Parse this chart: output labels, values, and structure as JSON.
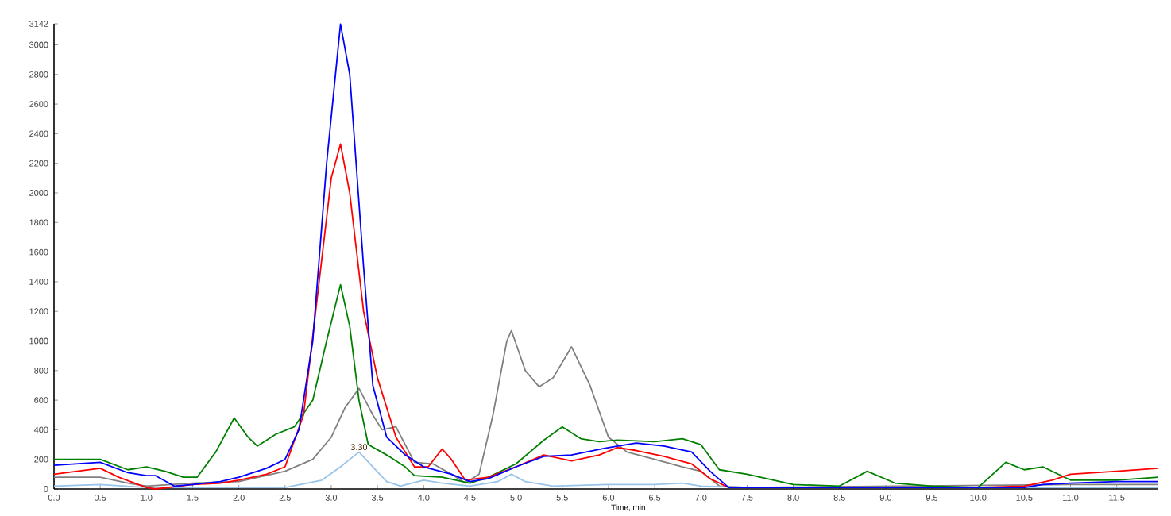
{
  "chart_data": {
    "type": "line",
    "xlabel": "Time, min",
    "xlim": [
      0,
      11.95
    ],
    "ylim": [
      0,
      3142
    ],
    "xticks": [
      {
        "value": 0,
        "label": "0.0"
      },
      0.5,
      {
        "value": 1,
        "label": "1.0"
      },
      1.5,
      {
        "value": 2,
        "label": "2.0"
      },
      2.5,
      {
        "value": 3,
        "label": "3.0"
      },
      3.5,
      {
        "value": 4,
        "label": "4.0"
      },
      4.5,
      {
        "value": 5,
        "label": "5.0"
      },
      5.5,
      {
        "value": 6,
        "label": "6.0"
      },
      6.5,
      {
        "value": 7,
        "label": "7.0"
      },
      7.5,
      {
        "value": 8,
        "label": "8.0"
      },
      8.5,
      {
        "value": 9,
        "label": "9.0"
      },
      9.5,
      {
        "value": 10,
        "label": "10.0"
      },
      10.5,
      {
        "value": 11,
        "label": "11.0"
      },
      11.5
    ],
    "yticks": [
      0,
      200,
      400,
      600,
      800,
      1000,
      1200,
      1400,
      1600,
      1800,
      2000,
      2200,
      2400,
      2600,
      2800,
      3000,
      3142
    ],
    "grid": false,
    "marker": "none",
    "line_style": "solid",
    "annotations": [
      {
        "text": "3.30",
        "x": 3.3,
        "y": 250
      }
    ],
    "series": [
      {
        "color": "#808080",
        "x": [
          0,
          0.5,
          0.8,
          1.0,
          1.5,
          2.0,
          2.5,
          2.8,
          3.0,
          3.15,
          3.3,
          3.45,
          3.55,
          3.7,
          3.8,
          3.9,
          4.1,
          4.3,
          4.45,
          4.6,
          4.75,
          4.9,
          4.95,
          5.1,
          5.25,
          5.4,
          5.6,
          5.8,
          6.0,
          6.2,
          6.5,
          6.8,
          7.0,
          7.2,
          7.5,
          11.0,
          11.95
        ],
        "values": [
          80,
          80,
          40,
          20,
          40,
          50,
          120,
          200,
          350,
          550,
          680,
          500,
          400,
          420,
          300,
          180,
          170,
          100,
          40,
          100,
          500,
          1000,
          1070,
          800,
          690,
          750,
          960,
          700,
          350,
          250,
          200,
          150,
          120,
          20,
          10,
          30,
          30
        ]
      },
      {
        "color": "#99c4e8",
        "x": [
          0,
          0.5,
          1.0,
          1.5,
          2.5,
          2.9,
          3.1,
          3.3,
          3.45,
          3.6,
          3.75,
          4.0,
          4.2,
          4.5,
          4.8,
          4.95,
          5.1,
          5.4,
          6.0,
          6.5,
          6.8,
          7.0,
          7.5,
          11.95
        ],
        "values": [
          20,
          30,
          10,
          10,
          10,
          60,
          150,
          250,
          150,
          50,
          20,
          60,
          40,
          20,
          50,
          100,
          50,
          20,
          30,
          30,
          40,
          20,
          10,
          10
        ]
      },
      {
        "color": "#008000",
        "x": [
          0,
          0.5,
          0.8,
          1.0,
          1.2,
          1.4,
          1.55,
          1.75,
          1.95,
          2.1,
          2.2,
          2.4,
          2.6,
          2.8,
          2.95,
          3.1,
          3.2,
          3.3,
          3.4,
          3.6,
          3.8,
          3.9,
          4.2,
          4.5,
          4.7,
          5.0,
          5.3,
          5.5,
          5.7,
          5.9,
          6.1,
          6.5,
          6.8,
          7.0,
          7.2,
          7.5,
          8.0,
          8.5,
          8.8,
          9.1,
          9.5,
          10.0,
          10.3,
          10.5,
          10.7,
          11.0,
          11.5,
          11.95
        ],
        "values": [
          200,
          200,
          130,
          150,
          120,
          80,
          80,
          250,
          480,
          350,
          290,
          370,
          420,
          600,
          1000,
          1380,
          1100,
          600,
          300,
          230,
          150,
          90,
          80,
          40,
          80,
          170,
          330,
          420,
          340,
          320,
          330,
          320,
          340,
          300,
          130,
          100,
          30,
          20,
          120,
          40,
          20,
          10,
          180,
          130,
          150,
          60,
          60,
          80
        ]
      },
      {
        "color": "#ff0000",
        "x": [
          0,
          0.5,
          0.7,
          1.0,
          1.1,
          1.5,
          1.8,
          2.0,
          2.3,
          2.5,
          2.7,
          2.85,
          3.0,
          3.1,
          3.2,
          3.35,
          3.5,
          3.7,
          3.9,
          4.05,
          4.2,
          4.3,
          4.45,
          4.7,
          5.0,
          5.3,
          5.6,
          5.9,
          6.1,
          6.3,
          6.6,
          6.9,
          7.1,
          7.3,
          9.5,
          10.0,
          10.5,
          10.8,
          11.0,
          11.5,
          11.95
        ],
        "values": [
          100,
          140,
          80,
          10,
          0,
          30,
          40,
          60,
          100,
          150,
          500,
          1300,
          2100,
          2330,
          2000,
          1200,
          750,
          350,
          150,
          150,
          270,
          200,
          60,
          80,
          150,
          230,
          190,
          230,
          280,
          260,
          220,
          170,
          70,
          10,
          10,
          10,
          20,
          60,
          100,
          120,
          140
        ]
      },
      {
        "color": "#0000ff",
        "x": [
          0,
          0.5,
          0.8,
          1.0,
          1.1,
          1.3,
          1.5,
          1.8,
          2.0,
          2.3,
          2.5,
          2.65,
          2.8,
          2.95,
          3.1,
          3.2,
          3.35,
          3.45,
          3.6,
          3.8,
          4.0,
          4.3,
          4.5,
          4.7,
          5.0,
          5.3,
          5.6,
          6.0,
          6.3,
          6.6,
          6.9,
          7.1,
          7.3,
          7.5,
          10.0,
          10.5,
          10.7,
          11.0,
          11.5,
          11.95
        ],
        "values": [
          160,
          180,
          110,
          90,
          90,
          20,
          30,
          50,
          80,
          140,
          200,
          400,
          1000,
          2200,
          3140,
          2800,
          1500,
          700,
          350,
          230,
          150,
          100,
          50,
          70,
          150,
          220,
          230,
          280,
          310,
          290,
          250,
          120,
          10,
          10,
          10,
          10,
          30,
          40,
          50,
          50
        ]
      }
    ]
  }
}
